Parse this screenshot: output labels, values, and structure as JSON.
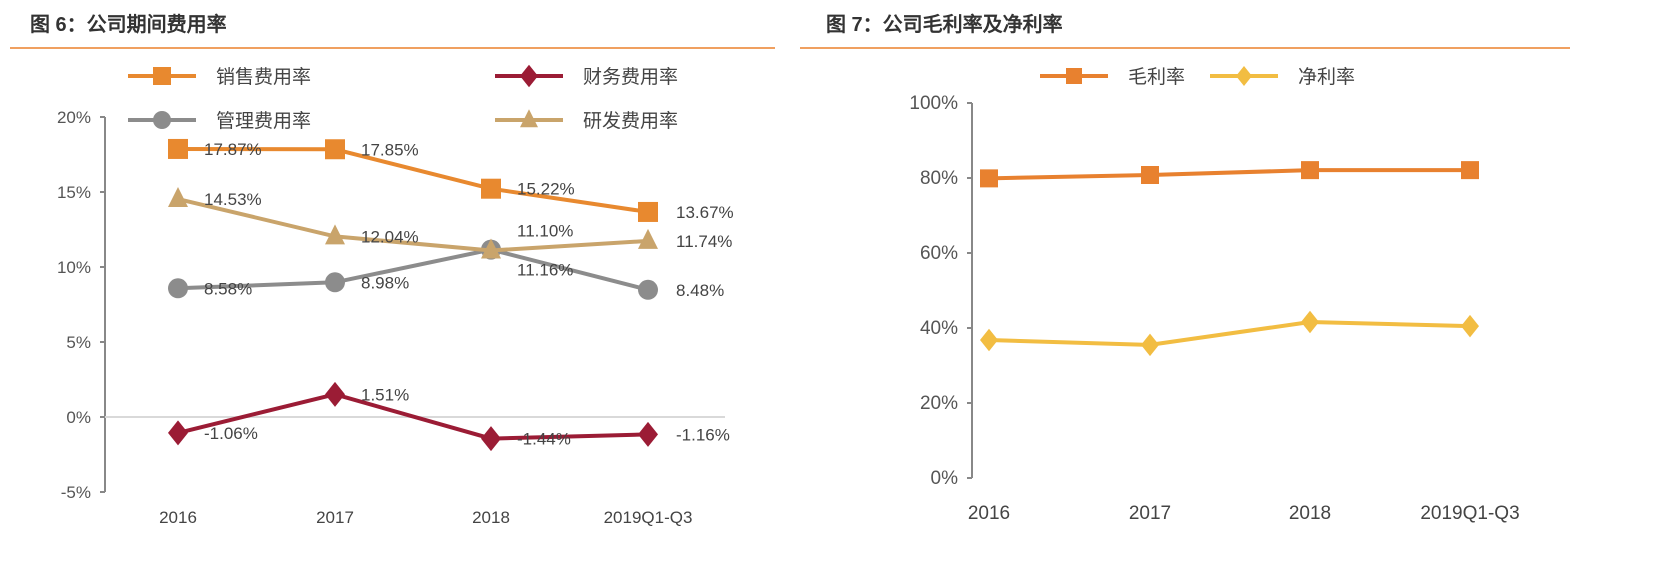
{
  "chart_data": [
    {
      "type": "line",
      "title": "图 6：公司期间费用率",
      "categories": [
        "2016",
        "2017",
        "2018",
        "2019Q1-Q3"
      ],
      "ylim": [
        -5,
        20
      ],
      "yticks": [
        "-5%",
        "0%",
        "5%",
        "10%",
        "15%",
        "20%"
      ],
      "ytick_values": [
        -5,
        0,
        5,
        10,
        15,
        20
      ],
      "grid": false,
      "legend": "top",
      "series": [
        {
          "name": "销售费用率",
          "values": [
            17.87,
            17.85,
            15.22,
            13.67
          ],
          "labels": [
            "17.87%",
            "17.85%",
            "15.22%",
            "13.67%"
          ],
          "color": "#e8892f",
          "marker": "square"
        },
        {
          "name": "财务费用率",
          "values": [
            -1.06,
            1.51,
            -1.44,
            -1.16
          ],
          "labels": [
            "-1.06%",
            "1.51%",
            "-1.44%",
            "-1.16%"
          ],
          "color": "#9b1c35",
          "marker": "diamond"
        },
        {
          "name": "管理费用率",
          "values": [
            8.58,
            8.98,
            11.16,
            8.48
          ],
          "labels": [
            "8.58%",
            "8.98%",
            "11.16%",
            "8.48%"
          ],
          "color": "#8c8c8c",
          "marker": "circle"
        },
        {
          "name": "研发费用率",
          "values": [
            14.53,
            12.04,
            11.1,
            11.74
          ],
          "labels": [
            "14.53%",
            "12.04%",
            "11.10%",
            "11.74%"
          ],
          "color": "#c9a46b",
          "marker": "triangle"
        }
      ]
    },
    {
      "type": "line",
      "title": "图 7：公司毛利率及净利率",
      "categories": [
        "2016",
        "2017",
        "2018",
        "2019Q1-Q3"
      ],
      "ylim": [
        0,
        100
      ],
      "yticks": [
        "0%",
        "20%",
        "40%",
        "60%",
        "80%",
        "100%"
      ],
      "ytick_values": [
        0,
        20,
        40,
        60,
        80,
        100
      ],
      "grid": false,
      "legend": "top",
      "series": [
        {
          "name": "毛利率",
          "values": [
            79.9,
            80.8,
            82.1,
            82.1
          ],
          "color": "#e8812f",
          "marker": "square"
        },
        {
          "name": "净利率",
          "values": [
            36.8,
            35.5,
            41.6,
            40.5
          ],
          "color": "#f2bd42",
          "marker": "diamond"
        }
      ]
    }
  ]
}
